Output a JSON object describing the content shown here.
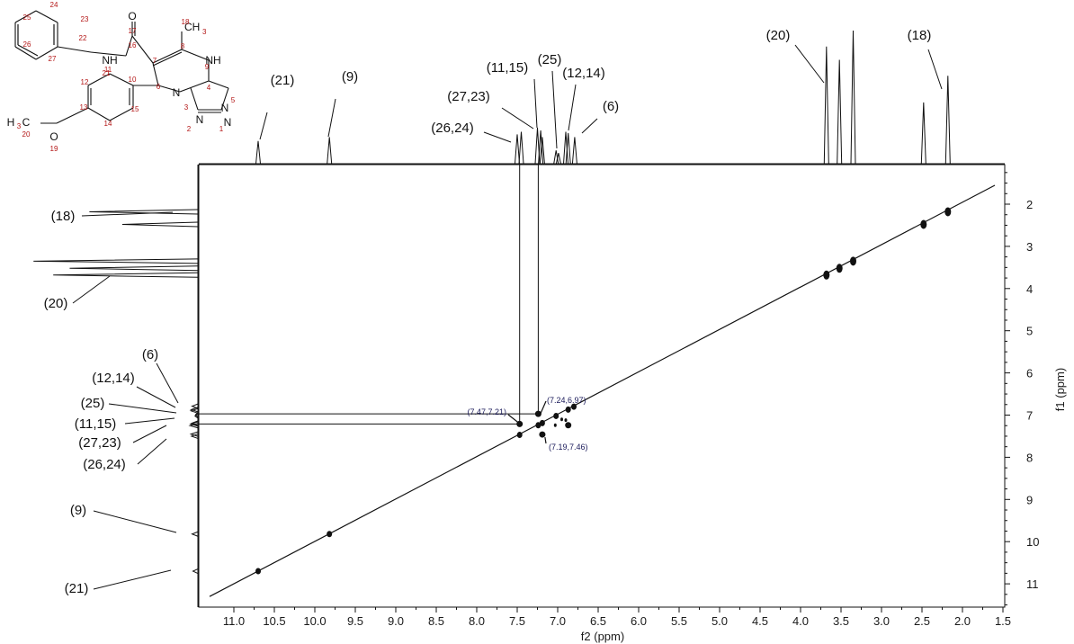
{
  "chart_data": {
    "type": "scatter",
    "subtype": "2D NMR COSY contour plot with 1D projections",
    "xlabel": "f2 (ppm)",
    "ylabel": "f1 (ppm)",
    "xlim": [
      11.3,
      1.5
    ],
    "ylim": [
      1.6,
      11.4
    ],
    "x_ticks": [
      "11.0",
      "10.5",
      "10.0",
      "9.5",
      "9.0",
      "8.5",
      "8.0",
      "7.5",
      "7.0",
      "6.5",
      "6.0",
      "5.5",
      "5.0",
      "4.5",
      "4.0",
      "3.5",
      "3.0",
      "2.5",
      "2.0",
      "1.5"
    ],
    "x_tick_values": [
      11.0,
      10.5,
      10.0,
      9.5,
      9.0,
      8.5,
      8.0,
      7.5,
      7.0,
      6.5,
      6.0,
      5.5,
      5.0,
      4.5,
      4.0,
      3.5,
      3.0,
      2.5,
      2.0,
      1.5
    ],
    "y_ticks": [
      "2",
      "3",
      "4",
      "5",
      "6",
      "7",
      "8",
      "9",
      "10",
      "11"
    ],
    "y_tick_values": [
      2,
      3,
      4,
      5,
      6,
      7,
      8,
      9,
      10,
      11
    ],
    "diagonal_peaks": [
      {
        "x": 10.7,
        "y": 10.7
      },
      {
        "x": 9.82,
        "y": 9.82
      },
      {
        "x": 7.47,
        "y": 7.47
      },
      {
        "x": 7.24,
        "y": 7.24
      },
      {
        "x": 7.19,
        "y": 7.19
      },
      {
        "x": 7.02,
        "y": 7.02
      },
      {
        "x": 6.87,
        "y": 6.87
      },
      {
        "x": 6.8,
        "y": 6.8
      },
      {
        "x": 3.68,
        "y": 3.68
      },
      {
        "x": 3.52,
        "y": 3.52
      },
      {
        "x": 3.35,
        "y": 3.35
      },
      {
        "x": 2.48,
        "y": 2.48
      },
      {
        "x": 2.18,
        "y": 2.18
      }
    ],
    "cross_peaks": [
      {
        "x": 7.47,
        "y": 7.21,
        "label": "(7.47,7.21)"
      },
      {
        "x": 7.24,
        "y": 6.97,
        "label": "(7.24,6.97)"
      },
      {
        "x": 7.19,
        "y": 7.46,
        "label": "(7.19,7.46)"
      },
      {
        "x": 6.87,
        "y": 7.24,
        "label": ""
      }
    ],
    "top_projection_peaks": [
      {
        "ppm": 10.7,
        "height": 0.17,
        "label": "(21)"
      },
      {
        "ppm": 9.82,
        "height": 0.2,
        "label": "(9)"
      },
      {
        "ppm": 7.5,
        "height": 0.22,
        "label": ""
      },
      {
        "ppm": 7.45,
        "height": 0.24,
        "label": "(26,24)"
      },
      {
        "ppm": 7.25,
        "height": 0.27,
        "label": ""
      },
      {
        "ppm": 7.21,
        "height": 0.25,
        "label": "(27,23)"
      },
      {
        "ppm": 7.19,
        "height": 0.2,
        "label": "(11,15)"
      },
      {
        "ppm": 7.02,
        "height": 0.1,
        "label": ""
      },
      {
        "ppm": 6.99,
        "height": 0.08,
        "label": "(25)"
      },
      {
        "ppm": 6.9,
        "height": 0.24,
        "label": ""
      },
      {
        "ppm": 6.87,
        "height": 0.23,
        "label": "(12,14)"
      },
      {
        "ppm": 6.79,
        "height": 0.2,
        "label": "(6)"
      },
      {
        "ppm": 3.68,
        "height": 0.88,
        "label": "(20)"
      },
      {
        "ppm": 3.52,
        "height": 0.78,
        "label": ""
      },
      {
        "ppm": 3.35,
        "height": 1.0,
        "label": ""
      },
      {
        "ppm": 2.48,
        "height": 0.46,
        "label": ""
      },
      {
        "ppm": 2.18,
        "height": 0.66,
        "label": "(18)"
      }
    ],
    "left_projection_labels": [
      "(18)",
      "(20)",
      "(6)",
      "(12,14)",
      "(25)",
      "(11,15)",
      "(27,23)",
      "(26,24)",
      "(9)",
      "(21)"
    ],
    "structure": {
      "atoms": [
        "O",
        "NH",
        "CH3",
        "NH",
        "N",
        "N",
        "N",
        "N",
        "H3C",
        "O"
      ],
      "atom_numbers": [
        "1",
        "2",
        "3",
        "4",
        "5",
        "6",
        "7",
        "8",
        "9",
        "10",
        "11",
        "12",
        "13",
        "14",
        "15",
        "16",
        "17",
        "18",
        "19",
        "20",
        "21",
        "22",
        "23",
        "24",
        "25",
        "26",
        "27"
      ]
    },
    "grid": false,
    "legend": "none"
  }
}
